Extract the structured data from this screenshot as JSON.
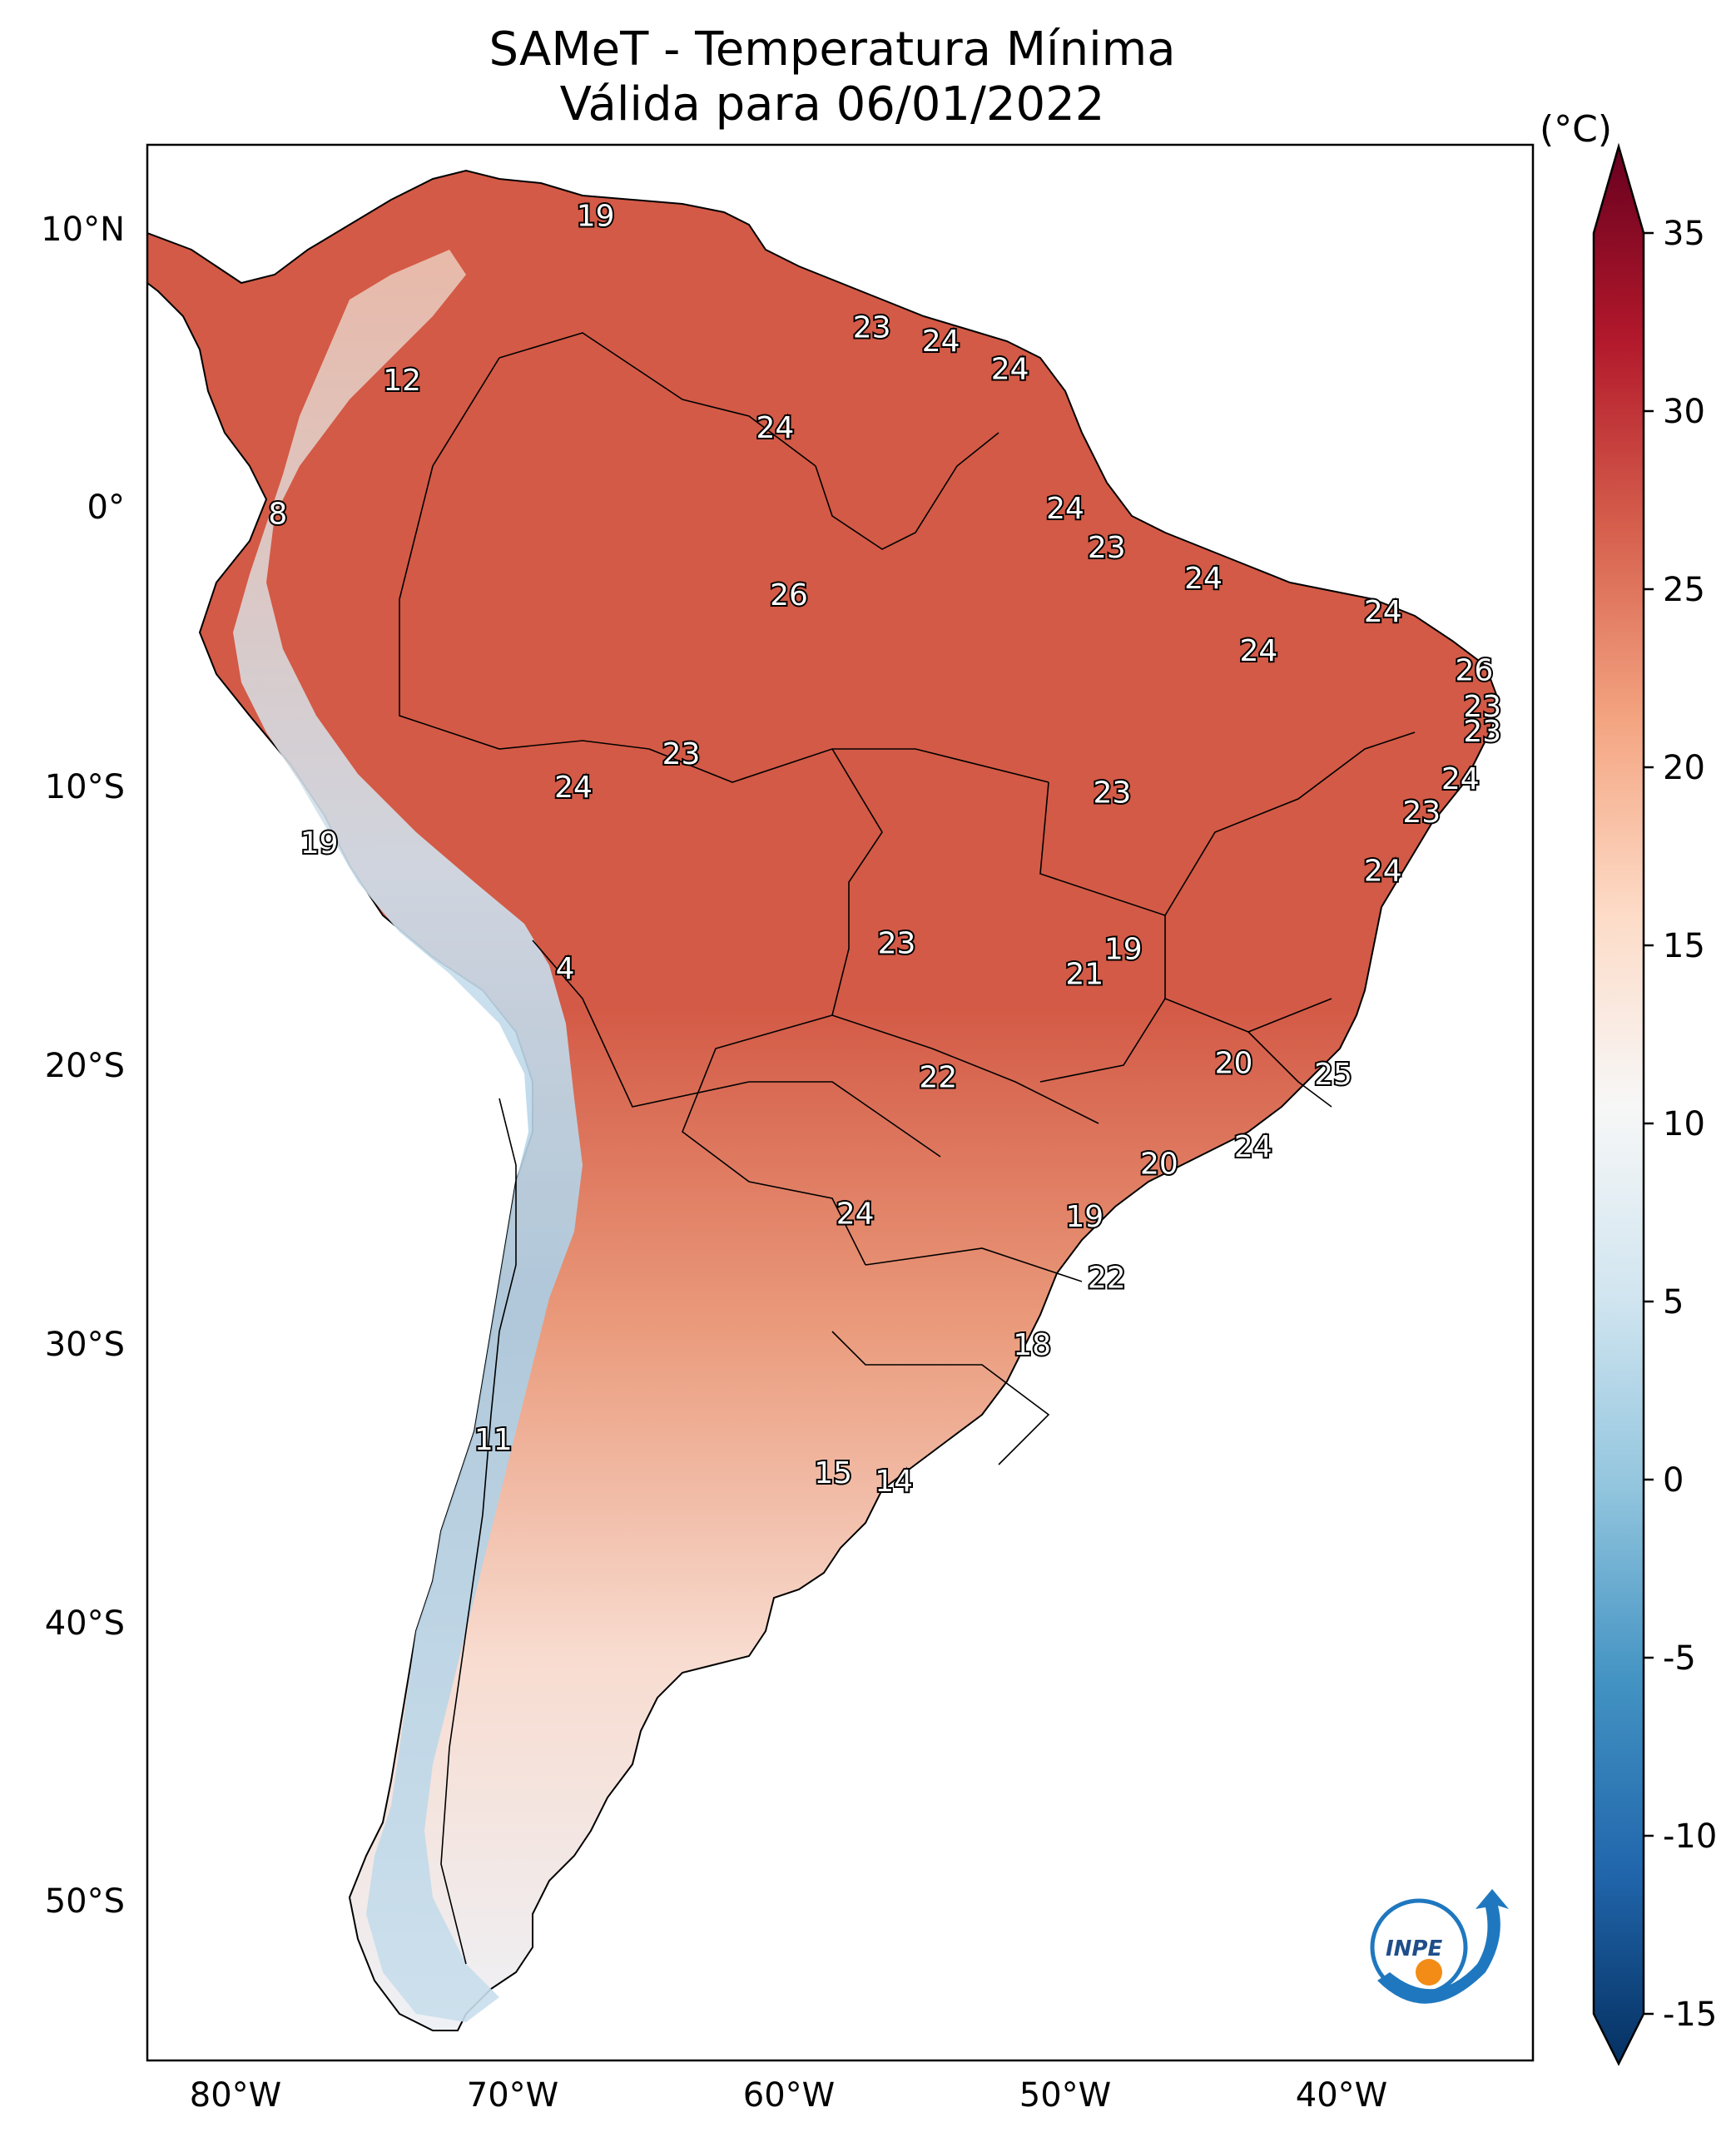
{
  "title": {
    "line1": "SAMeT - Temperatura Mínima",
    "line2": "Válida para 06/01/2022"
  },
  "colorbar": {
    "unit": "(°C)",
    "min": -15,
    "max": 35,
    "ticks": [
      "35",
      "30",
      "25",
      "20",
      "15",
      "10",
      "5",
      "0",
      "-5",
      "-10",
      "-15"
    ],
    "colors": [
      "#053061",
      "#2166ac",
      "#4393c3",
      "#92c5de",
      "#d1e5f0",
      "#f7f7f7",
      "#fddbc7",
      "#f4a582",
      "#d6604d",
      "#b2182b",
      "#67001f"
    ]
  },
  "axes": {
    "lat_labels": [
      "10°N",
      "0°",
      "10°S",
      "20°S",
      "30°S",
      "40°S",
      "50°S"
    ],
    "lon_labels": [
      "80°W",
      "70°W",
      "60°W",
      "50°W",
      "40°W"
    ]
  },
  "stations": [
    {
      "value": "19",
      "lon": -67.0,
      "lat": 10.5
    },
    {
      "value": "23",
      "lon": -57.0,
      "lat": 6.5
    },
    {
      "value": "24",
      "lon": -54.5,
      "lat": 6.0
    },
    {
      "value": "24",
      "lon": -52.0,
      "lat": 5.0
    },
    {
      "value": "12",
      "lon": -74.0,
      "lat": 4.6
    },
    {
      "value": "24",
      "lon": -60.5,
      "lat": 2.9
    },
    {
      "value": "8",
      "lon": -78.5,
      "lat": -0.2
    },
    {
      "value": "24",
      "lon": -50.0,
      "lat": 0.0
    },
    {
      "value": "23",
      "lon": -48.5,
      "lat": -1.4
    },
    {
      "value": "24",
      "lon": -45.0,
      "lat": -2.5
    },
    {
      "value": "24",
      "lon": -38.5,
      "lat": -3.7
    },
    {
      "value": "26",
      "lon": -60.0,
      "lat": -3.1
    },
    {
      "value": "24",
      "lon": -43.0,
      "lat": -5.1
    },
    {
      "value": "26",
      "lon": -35.2,
      "lat": -5.8
    },
    {
      "value": "23",
      "lon": -34.9,
      "lat": -7.1
    },
    {
      "value": "23",
      "lon": -34.9,
      "lat": -8.0
    },
    {
      "value": "23",
      "lon": -63.9,
      "lat": -8.8
    },
    {
      "value": "24",
      "lon": -67.8,
      "lat": -10.0
    },
    {
      "value": "24",
      "lon": -35.7,
      "lat": -9.7
    },
    {
      "value": "23",
      "lon": -48.3,
      "lat": -10.2
    },
    {
      "value": "23",
      "lon": -37.1,
      "lat": -10.9
    },
    {
      "value": "19",
      "lon": -77.0,
      "lat": -12.0
    },
    {
      "value": "24",
      "lon": -38.5,
      "lat": -13.0
    },
    {
      "value": "19",
      "lon": -47.9,
      "lat": -15.8
    },
    {
      "value": "23",
      "lon": -56.1,
      "lat": -15.6
    },
    {
      "value": "21",
      "lon": -49.3,
      "lat": -16.7
    },
    {
      "value": "4",
      "lon": -68.1,
      "lat": -16.5
    },
    {
      "value": "20",
      "lon": -43.9,
      "lat": -19.9
    },
    {
      "value": "25",
      "lon": -40.3,
      "lat": -20.3
    },
    {
      "value": "22",
      "lon": -54.6,
      "lat": -20.4
    },
    {
      "value": "24",
      "lon": -43.2,
      "lat": -22.9
    },
    {
      "value": "20",
      "lon": -46.6,
      "lat": -23.5
    },
    {
      "value": "24",
      "lon": -57.6,
      "lat": -25.3
    },
    {
      "value": "19",
      "lon": -49.3,
      "lat": -25.4
    },
    {
      "value": "22",
      "lon": -48.5,
      "lat": -27.6
    },
    {
      "value": "18",
      "lon": -51.2,
      "lat": -30.0
    },
    {
      "value": "11",
      "lon": -70.7,
      "lat": -33.4
    },
    {
      "value": "15",
      "lon": -58.4,
      "lat": -34.6
    },
    {
      "value": "14",
      "lon": -56.2,
      "lat": -34.9
    }
  ],
  "logo": {
    "text": "INPE"
  }
}
